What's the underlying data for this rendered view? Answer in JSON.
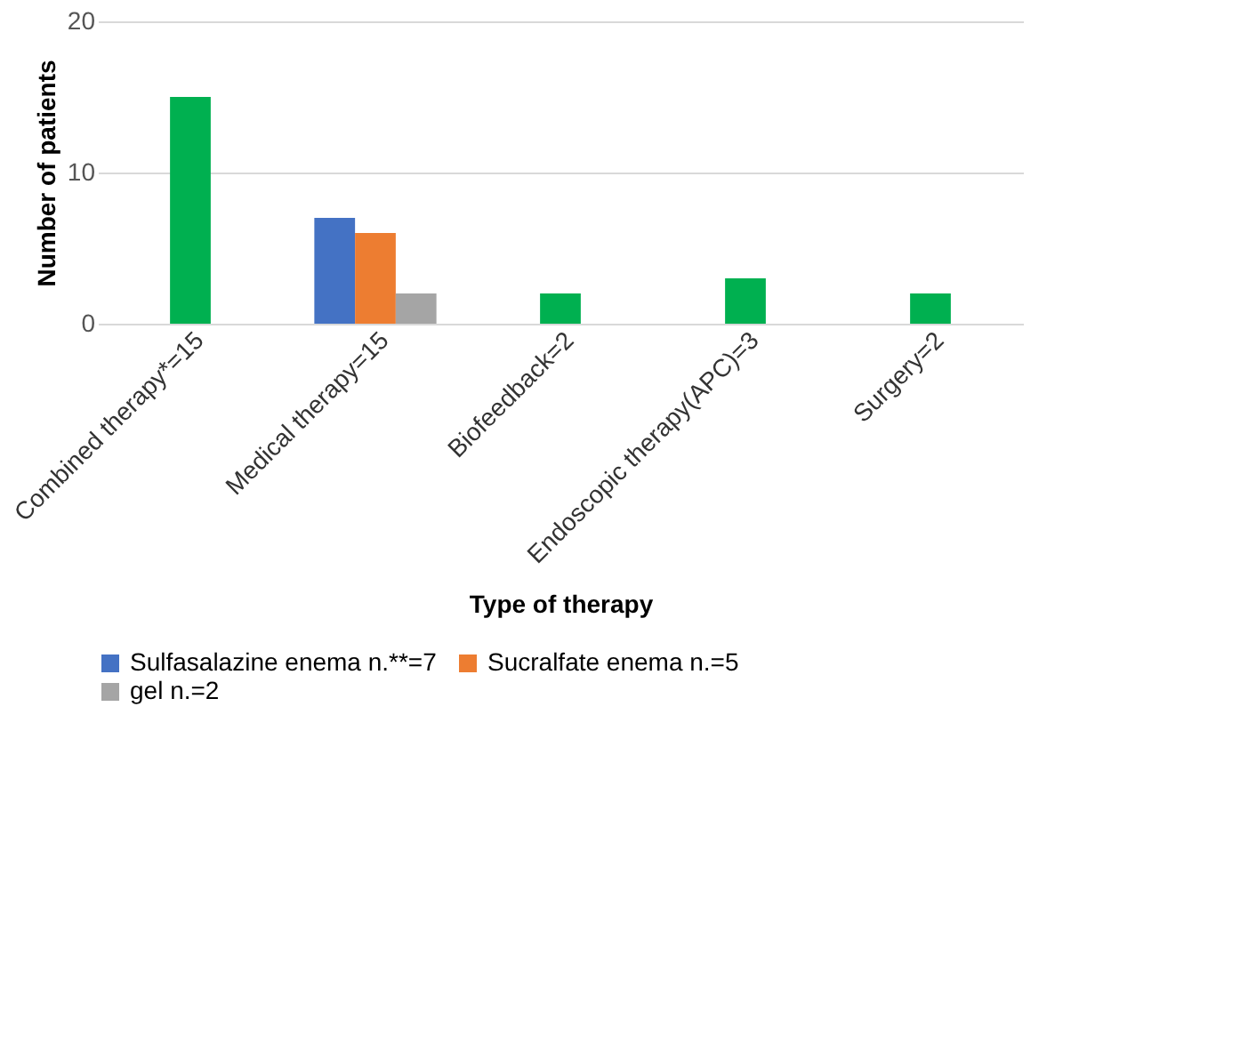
{
  "chart_data": {
    "type": "bar",
    "xlabel": "Type of therapy",
    "ylabel": "Number of patients",
    "categories": [
      "Combined therapy*=15",
      "Medical therapy=15",
      "Biofeedback=2",
      "Endoscopic therapy(APC)=3",
      "Surgery=2"
    ],
    "series": [
      {
        "color": "#00b050",
        "values": [
          15,
          null,
          2,
          3,
          2
        ]
      },
      {
        "name": "Sulfasalazine enema n.**=7",
        "color": "#4472c4",
        "values": [
          null,
          7,
          null,
          null,
          null
        ]
      },
      {
        "name": "Sucralfate enema n.=5",
        "color": "#ed7d31",
        "values": [
          null,
          6,
          null,
          null,
          null
        ]
      },
      {
        "name": "gel n.=2",
        "color": "#a5a5a5",
        "values": [
          null,
          2,
          null,
          null,
          null
        ]
      }
    ],
    "ylim": [
      0,
      20
    ],
    "yticks": [
      0,
      10,
      20
    ],
    "grid": "y",
    "legend": "bottom"
  }
}
